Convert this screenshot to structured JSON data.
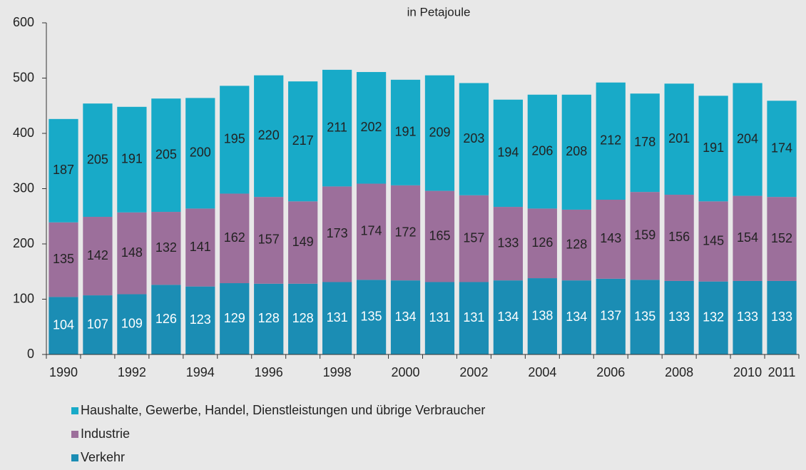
{
  "chart_data": {
    "type": "stacked_bar",
    "subtitle": "in Petajoule",
    "categories": [
      "1990",
      null,
      "1992",
      null,
      "1994",
      null,
      "1996",
      null,
      "1998",
      null,
      "2000",
      null,
      "2002",
      null,
      "2004",
      null,
      "2006",
      null,
      "2008",
      null,
      "2010",
      "2011"
    ],
    "series": [
      {
        "name": "Verkehr",
        "color": "#1b8db4",
        "label_color": "#ffffff",
        "values": [
          104,
          107,
          109,
          126,
          123,
          129,
          128,
          128,
          131,
          135,
          134,
          131,
          131,
          134,
          138,
          134,
          137,
          135,
          133,
          132,
          133,
          133
        ]
      },
      {
        "name": "Industrie",
        "color": "#9c6f9b",
        "label_color": "#222222",
        "values": [
          135,
          142,
          148,
          132,
          141,
          162,
          157,
          149,
          173,
          174,
          172,
          165,
          157,
          133,
          126,
          128,
          143,
          159,
          156,
          145,
          154,
          152
        ]
      },
      {
        "name": "Haushalte, Gewerbe, Handel, Dienstleistungen und übrige Verbraucher",
        "color": "#18aac8",
        "label_color": "#222222",
        "values": [
          187,
          205,
          191,
          205,
          200,
          195,
          220,
          217,
          211,
          202,
          191,
          209,
          203,
          194,
          206,
          208,
          212,
          178,
          201,
          191,
          204,
          174
        ]
      }
    ],
    "ylim": [
      0,
      600
    ],
    "yticks": [
      0,
      100,
      200,
      300,
      400,
      500,
      600
    ],
    "legend": "bottom-left"
  }
}
